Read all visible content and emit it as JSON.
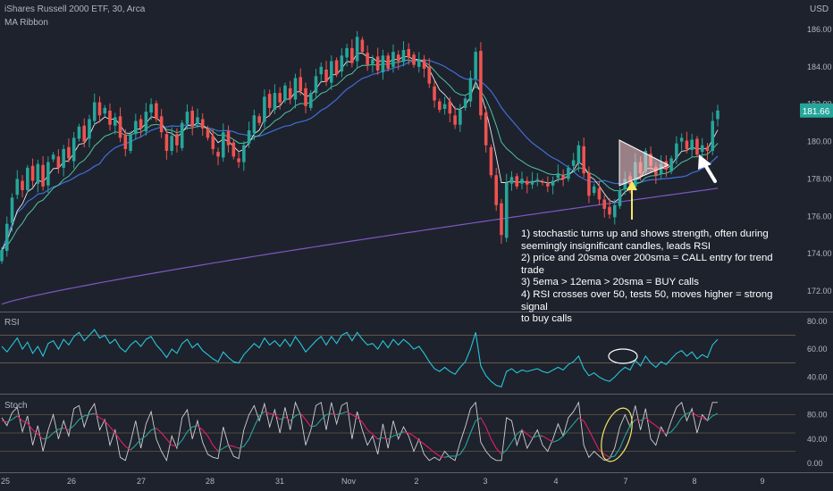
{
  "header": {
    "symbol_line": "iShares Russell 2000 ETF, 30, Arca",
    "indicator": "MA Ribbon",
    "currency": "USD"
  },
  "annotation_lines": [
    "1) stochastic turns up and shows strength, often during",
    "seemingly insignificant candles, leads RSI",
    "2) price and 20sma over 200sma = CALL entry for trend trade",
    "3) 5ema > 12ema > 20sma = BUY calls",
    "4) RSI crosses over 50, tests 50, moves higher = strong signal",
    "to buy calls"
  ],
  "price_badge": "181.66",
  "colors": {
    "background": "#1e222d",
    "up_candle": "#26a69a",
    "down_candle": "#ef5350",
    "ema5": "#e8e8e8",
    "ema12": "#4fc3a1",
    "sma20": "#3f6fd8",
    "sma200": "#7e57c2",
    "rsi_line": "#26c6da",
    "stoch_k": "#cfcfcf",
    "stoch_d_up": "#26a69a",
    "stoch_d_down": "#e91e63",
    "arrow_yellow": "#f5e663",
    "arrow_white": "#ffffff",
    "badge": "#26a69a"
  },
  "icons": [
    "white-arrow-icon",
    "yellow-arrow-icon",
    "triangle-pattern-icon",
    "rsi-ellipse-icon",
    "stoch-ellipse-icon"
  ],
  "chart_data": [
    {
      "type": "candlestick",
      "title": "iShares Russell 2000 ETF, 30, Arca",
      "ylabel": "USD",
      "ylim": [
        171,
        187
      ],
      "y_ticks": [
        "172.00",
        "174.00",
        "176.00",
        "178.00",
        "180.00",
        "182.00",
        "184.00",
        "186.00"
      ],
      "x_ticks": [
        "25",
        "26",
        "27",
        "28",
        "31",
        "Nov",
        "2",
        "3",
        "4",
        "7",
        "8",
        "9"
      ],
      "last_price": 181.66,
      "closes": [
        174.2,
        175.6,
        177.0,
        178.0,
        177.4,
        178.6,
        177.9,
        178.8,
        177.6,
        178.9,
        179.3,
        178.6,
        179.6,
        179.1,
        180.2,
        180.8,
        180.0,
        181.2,
        182.1,
        181.4,
        181.8,
        180.9,
        181.3,
        180.2,
        179.6,
        180.4,
        181.1,
        180.7,
        181.6,
        182.0,
        181.2,
        180.5,
        179.5,
        180.3,
        179.8,
        181.0,
        181.6,
        180.8,
        181.3,
        180.7,
        180.2,
        179.6,
        179.2,
        180.5,
        179.8,
        179.2,
        178.9,
        179.8,
        180.6,
        181.4,
        181.0,
        182.4,
        181.8,
        182.6,
        182.1,
        183.0,
        182.3,
        183.4,
        182.7,
        181.9,
        182.6,
        183.5,
        184.0,
        183.2,
        184.3,
        183.6,
        184.6,
        185.0,
        184.2,
        185.6,
        184.8,
        184.1,
        184.4,
        183.8,
        184.6,
        183.9,
        184.8,
        184.3,
        184.9,
        184.5,
        184.1,
        184.4,
        183.9,
        183.1,
        182.2,
        181.7,
        182.0,
        181.5,
        180.9,
        181.7,
        182.3,
        183.4,
        184.8,
        181.4,
        179.8,
        178.2,
        176.6,
        175.0,
        177.8,
        178.1,
        177.6,
        178.0,
        177.7,
        177.9,
        178.0,
        177.8,
        177.6,
        177.9,
        178.3,
        178.0,
        178.6,
        179.0,
        179.8,
        178.3,
        177.1,
        177.6,
        176.9,
        176.4,
        176.1,
        176.6,
        177.4,
        178.0,
        177.7,
        178.9,
        178.3,
        179.5,
        178.7,
        178.2,
        178.8,
        178.5,
        179.1,
        179.9,
        180.2,
        179.6,
        180.1,
        179.3,
        179.8,
        179.5,
        181.1,
        181.66
      ],
      "series": [
        {
          "name": "5 EMA",
          "role": "ribbon"
        },
        {
          "name": "12 EMA",
          "role": "ribbon"
        },
        {
          "name": "20 SMA",
          "role": "ribbon"
        },
        {
          "name": "200 SMA",
          "role": "ribbon"
        }
      ],
      "grid": false
    },
    {
      "type": "line",
      "title": "RSI",
      "ylim": [
        30,
        85
      ],
      "y_ticks": [
        "40.00",
        "60.00",
        "80.00"
      ],
      "bands": [
        50,
        70
      ],
      "values": [
        62,
        58,
        63,
        68,
        60,
        65,
        57,
        62,
        55,
        64,
        66,
        60,
        67,
        63,
        69,
        72,
        66,
        70,
        74,
        68,
        70,
        64,
        67,
        61,
        58,
        63,
        66,
        62,
        67,
        69,
        63,
        59,
        54,
        60,
        57,
        64,
        67,
        61,
        64,
        59,
        56,
        53,
        51,
        58,
        54,
        51,
        50,
        56,
        60,
        64,
        61,
        68,
        63,
        66,
        62,
        67,
        62,
        69,
        64,
        58,
        62,
        66,
        69,
        63,
        69,
        64,
        70,
        72,
        66,
        72,
        67,
        63,
        64,
        60,
        66,
        61,
        67,
        63,
        67,
        64,
        60,
        62,
        57,
        51,
        46,
        44,
        47,
        44,
        42,
        47,
        51,
        60,
        72,
        48,
        41,
        37,
        34,
        33,
        44,
        46,
        43,
        45,
        44,
        45,
        46,
        44,
        43,
        45,
        47,
        45,
        49,
        51,
        55,
        46,
        41,
        43,
        40,
        38,
        37,
        40,
        44,
        47,
        45,
        52,
        48,
        55,
        50,
        47,
        51,
        49,
        53,
        57,
        59,
        55,
        58,
        53,
        56,
        54,
        63,
        67
      ]
    },
    {
      "type": "line",
      "title": "Stoch",
      "ylim": [
        -10,
        110
      ],
      "y_ticks": [
        "0.00",
        "40.00",
        "80.00"
      ],
      "bands": [
        20,
        50,
        80
      ],
      "series": [
        {
          "name": "%K",
          "values": [
            75,
            62,
            83,
            92,
            52,
            78,
            30,
            62,
            20,
            55,
            80,
            40,
            70,
            45,
            90,
            95,
            60,
            85,
            98,
            55,
            72,
            30,
            55,
            10,
            5,
            35,
            70,
            25,
            65,
            85,
            40,
            20,
            5,
            45,
            25,
            75,
            88,
            40,
            70,
            35,
            15,
            10,
            8,
            60,
            30,
            12,
            8,
            55,
            80,
            95,
            70,
            98,
            60,
            88,
            50,
            92,
            55,
            100,
            80,
            30,
            55,
            95,
            100,
            55,
            100,
            65,
            95,
            100,
            40,
            85,
            55,
            30,
            45,
            15,
            65,
            25,
            70,
            40,
            60,
            45,
            20,
            40,
            15,
            5,
            10,
            5,
            20,
            10,
            5,
            35,
            60,
            90,
            100,
            35,
            20,
            10,
            5,
            5,
            75,
            70,
            30,
            55,
            25,
            40,
            55,
            30,
            20,
            40,
            65,
            45,
            75,
            85,
            100,
            30,
            10,
            20,
            12,
            5,
            8,
            25,
            60,
            80,
            60,
            95,
            55,
            90,
            40,
            30,
            60,
            45,
            70,
            92,
            100,
            70,
            90,
            50,
            80,
            70,
            100,
            100
          ]
        },
        {
          "name": "%D",
          "values": [
            70,
            68,
            72,
            78,
            70,
            66,
            55,
            48,
            40,
            42,
            50,
            56,
            58,
            55,
            62,
            72,
            78,
            80,
            82,
            75,
            70,
            60,
            50,
            38,
            28,
            22,
            30,
            40,
            45,
            55,
            58,
            50,
            40,
            30,
            28,
            38,
            52,
            60,
            62,
            55,
            45,
            30,
            20,
            25,
            30,
            28,
            25,
            28,
            40,
            60,
            78,
            85,
            82,
            80,
            72,
            76,
            70,
            78,
            82,
            72,
            60,
            62,
            72,
            80,
            82,
            80,
            82,
            85,
            80,
            75,
            68,
            55,
            48,
            40,
            42,
            40,
            45,
            48,
            52,
            50,
            45,
            38,
            32,
            25,
            18,
            12,
            10,
            12,
            12,
            15,
            28,
            50,
            70,
            75,
            60,
            40,
            25,
            15,
            22,
            35,
            48,
            55,
            48,
            42,
            45,
            45,
            40,
            35,
            38,
            45,
            55,
            65,
            75,
            70,
            55,
            38,
            22,
            15,
            10,
            12,
            25,
            45,
            62,
            72,
            70,
            75,
            68,
            62,
            55,
            48,
            52,
            62,
            75,
            82,
            85,
            78,
            75,
            70,
            78,
            82
          ]
        }
      ]
    }
  ]
}
